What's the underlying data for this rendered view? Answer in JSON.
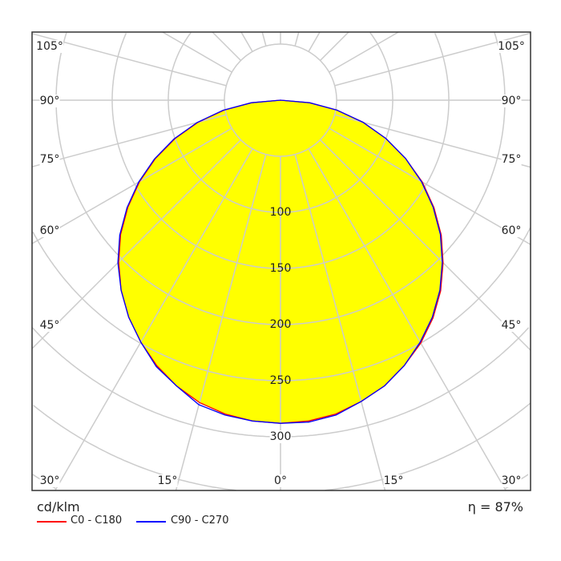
{
  "chart_data": {
    "type": "polar",
    "unit_label": "cd/klm",
    "efficiency_label": "η = 87%",
    "radial_ticks": [
      100,
      150,
      200,
      250,
      300
    ],
    "radial_grid_step": 50,
    "angle_grid_step_deg": 15,
    "angle_tick_labels": {
      "left": [
        "105°",
        "90°",
        "75°",
        "60°",
        "45°"
      ],
      "bottom": [
        "30°",
        "15°",
        "0°",
        "15°",
        "30°"
      ],
      "right": [
        "105°",
        "90°",
        "75°",
        "60°",
        "45°"
      ]
    },
    "fill_color": "#ffff00",
    "grid_color": "#cccccc",
    "gamma_deg": [
      0,
      5,
      10,
      15,
      20,
      25,
      30,
      35,
      40,
      45,
      50,
      55,
      60,
      65,
      70,
      75,
      80,
      85,
      90
    ],
    "series": [
      {
        "name": "C0 - C180",
        "color": "#ff0000",
        "left": [
          288,
          287,
          284,
          279,
          271,
          261,
          249,
          236,
          221,
          204,
          186,
          166,
          145,
          123,
          100,
          76,
          51,
          26,
          0
        ],
        "right": [
          288,
          287,
          284,
          278,
          271,
          261,
          250,
          237,
          222,
          205,
          187,
          167,
          146,
          123,
          100,
          76,
          51,
          26,
          0
        ]
      },
      {
        "name": "C90 - C270",
        "color": "#0000ff",
        "left": [
          288,
          287,
          285,
          281,
          271,
          262,
          249,
          236,
          221,
          205,
          187,
          167,
          146,
          124,
          101,
          77,
          52,
          26,
          0
        ],
        "right": [
          288,
          288,
          285,
          278,
          271,
          261,
          249,
          236,
          221,
          204,
          186,
          166,
          145,
          123,
          100,
          76,
          51,
          26,
          0
        ]
      }
    ]
  }
}
